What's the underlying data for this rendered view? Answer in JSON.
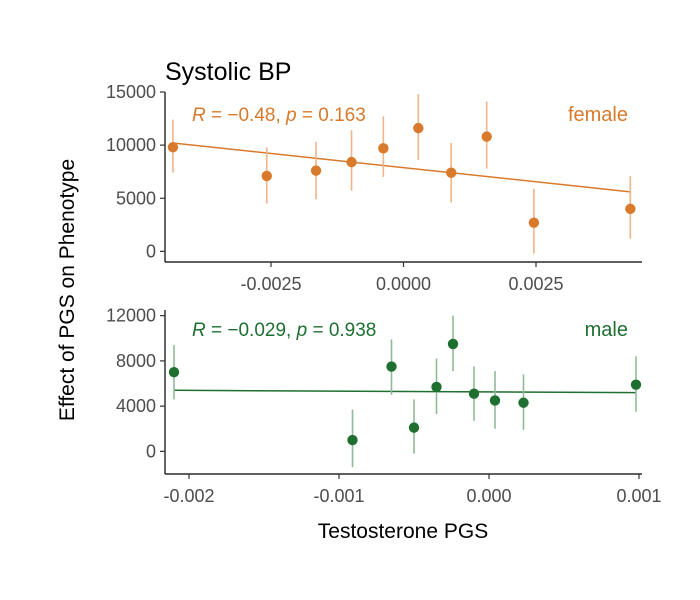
{
  "chart_data": {
    "type": "scatter",
    "title": "Systolic BP",
    "xlabel": "Testosterone PGS",
    "ylabel": "Effect of PGS on Phenotype",
    "colors": {
      "female": "#d9792b",
      "male": "#1e6f30",
      "female_err": "#f0b48a",
      "male_err": "#8fba97"
    },
    "panels": [
      {
        "name": "female",
        "stat_text": "R = −0.48, p = 0.163",
        "xlim": [
          -0.0045,
          0.0045
        ],
        "ylim": [
          -1000,
          15000
        ],
        "x_ticks": [
          -0.0025,
          0.0,
          0.0025
        ],
        "x_tick_labels": [
          "-0.0025",
          "0.0000",
          "0.0025"
        ],
        "y_ticks": [
          0,
          5000,
          10000,
          15000
        ],
        "y_tick_labels": [
          "0",
          "5000",
          "10000",
          "15000"
        ],
        "points": [
          {
            "x": -0.00435,
            "y": 9800,
            "lo": 7400,
            "hi": 12400
          },
          {
            "x": -0.00258,
            "y": 7100,
            "lo": 4500,
            "hi": 9800
          },
          {
            "x": -0.00165,
            "y": 7600,
            "lo": 4900,
            "hi": 10300
          },
          {
            "x": -0.00098,
            "y": 8400,
            "lo": 5700,
            "hi": 11400
          },
          {
            "x": -0.00038,
            "y": 9700,
            "lo": 7000,
            "hi": 12700
          },
          {
            "x": 0.00028,
            "y": 11600,
            "lo": 8600,
            "hi": 14800
          },
          {
            "x": 0.0009,
            "y": 7400,
            "lo": 4600,
            "hi": 10200
          },
          {
            "x": 0.00157,
            "y": 10800,
            "lo": 7800,
            "hi": 14100
          },
          {
            "x": 0.00246,
            "y": 2700,
            "lo": -200,
            "hi": 5900
          },
          {
            "x": 0.00428,
            "y": 4000,
            "lo": 1200,
            "hi": 7100
          }
        ],
        "fit": {
          "x0": -0.00435,
          "y0": 10200,
          "x1": 0.00428,
          "y1": 5600
        }
      },
      {
        "name": "male",
        "stat_text": "R = −0.029, p = 0.938",
        "xlim": [
          -0.00216,
          0.00102
        ],
        "ylim": [
          -2000,
          12500
        ],
        "x_ticks": [
          -0.002,
          -0.001,
          0.0,
          0.001
        ],
        "x_tick_labels": [
          "-0.002",
          "-0.001",
          "0.000",
          "0.001"
        ],
        "y_ticks": [
          0,
          4000,
          8000,
          12000
        ],
        "y_tick_labels": [
          "0",
          "4000",
          "8000",
          "12000"
        ],
        "points": [
          {
            "x": -0.0021,
            "y": 7000,
            "lo": 4600,
            "hi": 9400
          },
          {
            "x": -0.00091,
            "y": 1000,
            "lo": -1400,
            "hi": 3700
          },
          {
            "x": -0.00065,
            "y": 7500,
            "lo": 5000,
            "hi": 9900
          },
          {
            "x": -0.0005,
            "y": 2100,
            "lo": -200,
            "hi": 4600
          },
          {
            "x": -0.00035,
            "y": 5700,
            "lo": 3300,
            "hi": 8200
          },
          {
            "x": -0.00024,
            "y": 9500,
            "lo": 7100,
            "hi": 12000
          },
          {
            "x": -0.0001,
            "y": 5100,
            "lo": 2700,
            "hi": 7500
          },
          {
            "x": 4e-05,
            "y": 4500,
            "lo": 2000,
            "hi": 7100
          },
          {
            "x": 0.00023,
            "y": 4300,
            "lo": 1900,
            "hi": 6800
          },
          {
            "x": 0.00098,
            "y": 5900,
            "lo": 3500,
            "hi": 8400
          }
        ],
        "fit": {
          "x0": -0.0021,
          "y0": 5400,
          "x1": 0.00098,
          "y1": 5200
        }
      }
    ]
  }
}
